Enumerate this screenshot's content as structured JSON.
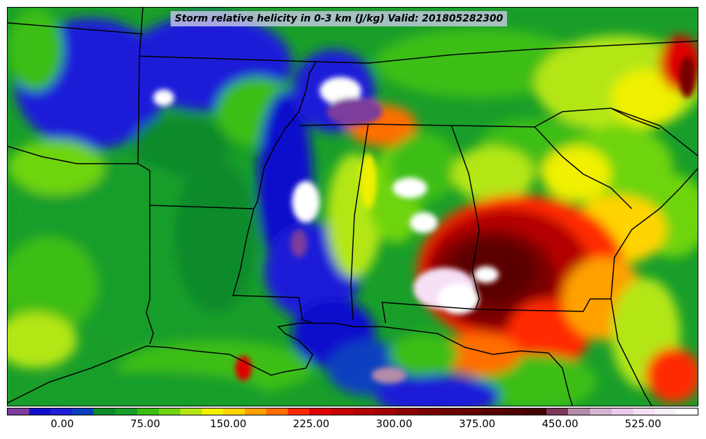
{
  "title": "Storm relative helicity in 0-3 km (J/kg) Valid: 201805282300",
  "colorbar": {
    "colors": [
      "#7c3c9c",
      "#1010cc",
      "#1f1fd8",
      "#0a40c0",
      "#0f8a2a",
      "#199e2a",
      "#3cbe12",
      "#6ed410",
      "#b4e614",
      "#f0f000",
      "#ffd400",
      "#ffa000",
      "#ff6e00",
      "#ff2a00",
      "#e00000",
      "#c80000",
      "#b40000",
      "#a00000",
      "#8c0000",
      "#780000",
      "#6e0000",
      "#640000",
      "#5a0000",
      "#4e0000",
      "#440000",
      "#7c3858",
      "#b48caa",
      "#d8b4d4",
      "#eccaec",
      "#f5e0f5",
      "#faf0fa",
      "#ffffff"
    ],
    "ticks": [
      {
        "value": 0,
        "label": "0.00"
      },
      {
        "value": 75,
        "label": "75.00"
      },
      {
        "value": 150,
        "label": "150.00"
      },
      {
        "value": 225,
        "label": "225.00"
      },
      {
        "value": 300,
        "label": "300.00"
      },
      {
        "value": 375,
        "label": "375.00"
      },
      {
        "value": 450,
        "label": "450.00"
      },
      {
        "value": 525,
        "label": "525.00"
      }
    ],
    "range": [
      -50,
      575
    ]
  }
}
